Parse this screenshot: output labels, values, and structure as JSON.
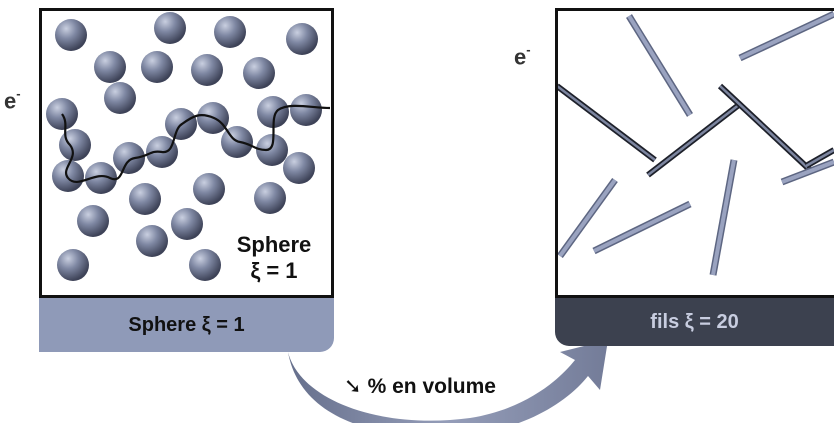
{
  "left_panel": {
    "electron_label": "e",
    "electron_sup": "-",
    "inner_label_line1": "Sphere",
    "inner_label_line2": "ξ = 1",
    "band_label": "Sphere ξ = 1",
    "band_color": "#8f9ab8",
    "sphere_color": "#6f7894"
  },
  "right_panel": {
    "electron_label": "e",
    "electron_sup": "-",
    "band_label": "fils ξ = 20",
    "band_color": "#3c414f",
    "band_text_color": "#c8cde0",
    "rod_color": "#8e98b6"
  },
  "transition": {
    "arrow_symbol": "➘",
    "label": "% en volume",
    "arrow_color": "#7f89a6"
  }
}
